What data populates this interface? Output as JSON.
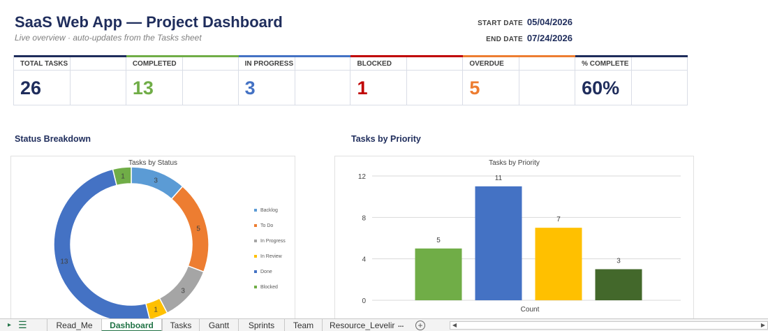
{
  "header": {
    "title": "SaaS Web App — Project Dashboard",
    "subtitle": "Live overview · auto-updates from the Tasks sheet",
    "start_label": "START DATE",
    "start_value": "05/04/2026",
    "end_label": "END DATE",
    "end_value": "07/24/2026"
  },
  "kpis": [
    {
      "label": "TOTAL TASKS",
      "value": "26",
      "color": "#1f2d5c"
    },
    {
      "label": "COMPLETED",
      "value": "13",
      "color": "#70ad47"
    },
    {
      "label": "IN PROGRESS",
      "value": "3",
      "color": "#4472c4"
    },
    {
      "label": "BLOCKED",
      "value": "1",
      "color": "#c00000"
    },
    {
      "label": "OVERDUE",
      "value": "5",
      "color": "#ed7d31"
    },
    {
      "label": "% COMPLETE",
      "value": "60%",
      "color": "#1f2d5c"
    }
  ],
  "kpi_accents": [
    "#1f2d5c",
    "#70ad47",
    "#4472c4",
    "#c00000",
    "#ed7d31",
    "#1f2d5c"
  ],
  "sections": {
    "status_title": "Status Breakdown",
    "priority_title": "Tasks by Priority"
  },
  "chart_data": [
    {
      "type": "pie",
      "title": "Tasks by Status",
      "categories": [
        "Backlog",
        "To Do",
        "In Progress",
        "In Review",
        "Done",
        "Blocked"
      ],
      "values": [
        3,
        5,
        3,
        1,
        13,
        1
      ],
      "colors": [
        "#5b9bd5",
        "#ed7d31",
        "#a5a5a5",
        "#ffc000",
        "#4472c4",
        "#70ad47"
      ],
      "legend": "right"
    },
    {
      "type": "bar",
      "title": "Tasks by Priority",
      "categories": [
        "Count"
      ],
      "series": [
        {
          "values": [
            5
          ],
          "color": "#70ad47"
        },
        {
          "values": [
            11
          ],
          "color": "#4472c4"
        },
        {
          "values": [
            7
          ],
          "color": "#ffc000"
        },
        {
          "values": [
            3
          ],
          "color": "#43682b"
        }
      ],
      "xlabel": "Count",
      "ylim": [
        0,
        12
      ],
      "yticks": [
        0,
        4,
        8,
        12
      ],
      "grid": true
    }
  ],
  "sheet_tabs": [
    {
      "label": "Read_Me",
      "active": false
    },
    {
      "label": "Dashboard",
      "active": true
    },
    {
      "label": "Tasks",
      "active": false
    },
    {
      "label": "Gantt",
      "active": false
    },
    {
      "label": "Sprints",
      "active": false
    },
    {
      "label": "Team",
      "active": false
    },
    {
      "label": "Resource_Levelir",
      "active": false
    }
  ],
  "tab_overflow": "...",
  "icons": {
    "nav_next": "triangle-right-icon",
    "sheet_list": "sheet-list-icon",
    "add_sheet": "plus-circle-icon",
    "scroll_left": "scroll-left-icon",
    "scroll_right": "scroll-right-icon"
  }
}
